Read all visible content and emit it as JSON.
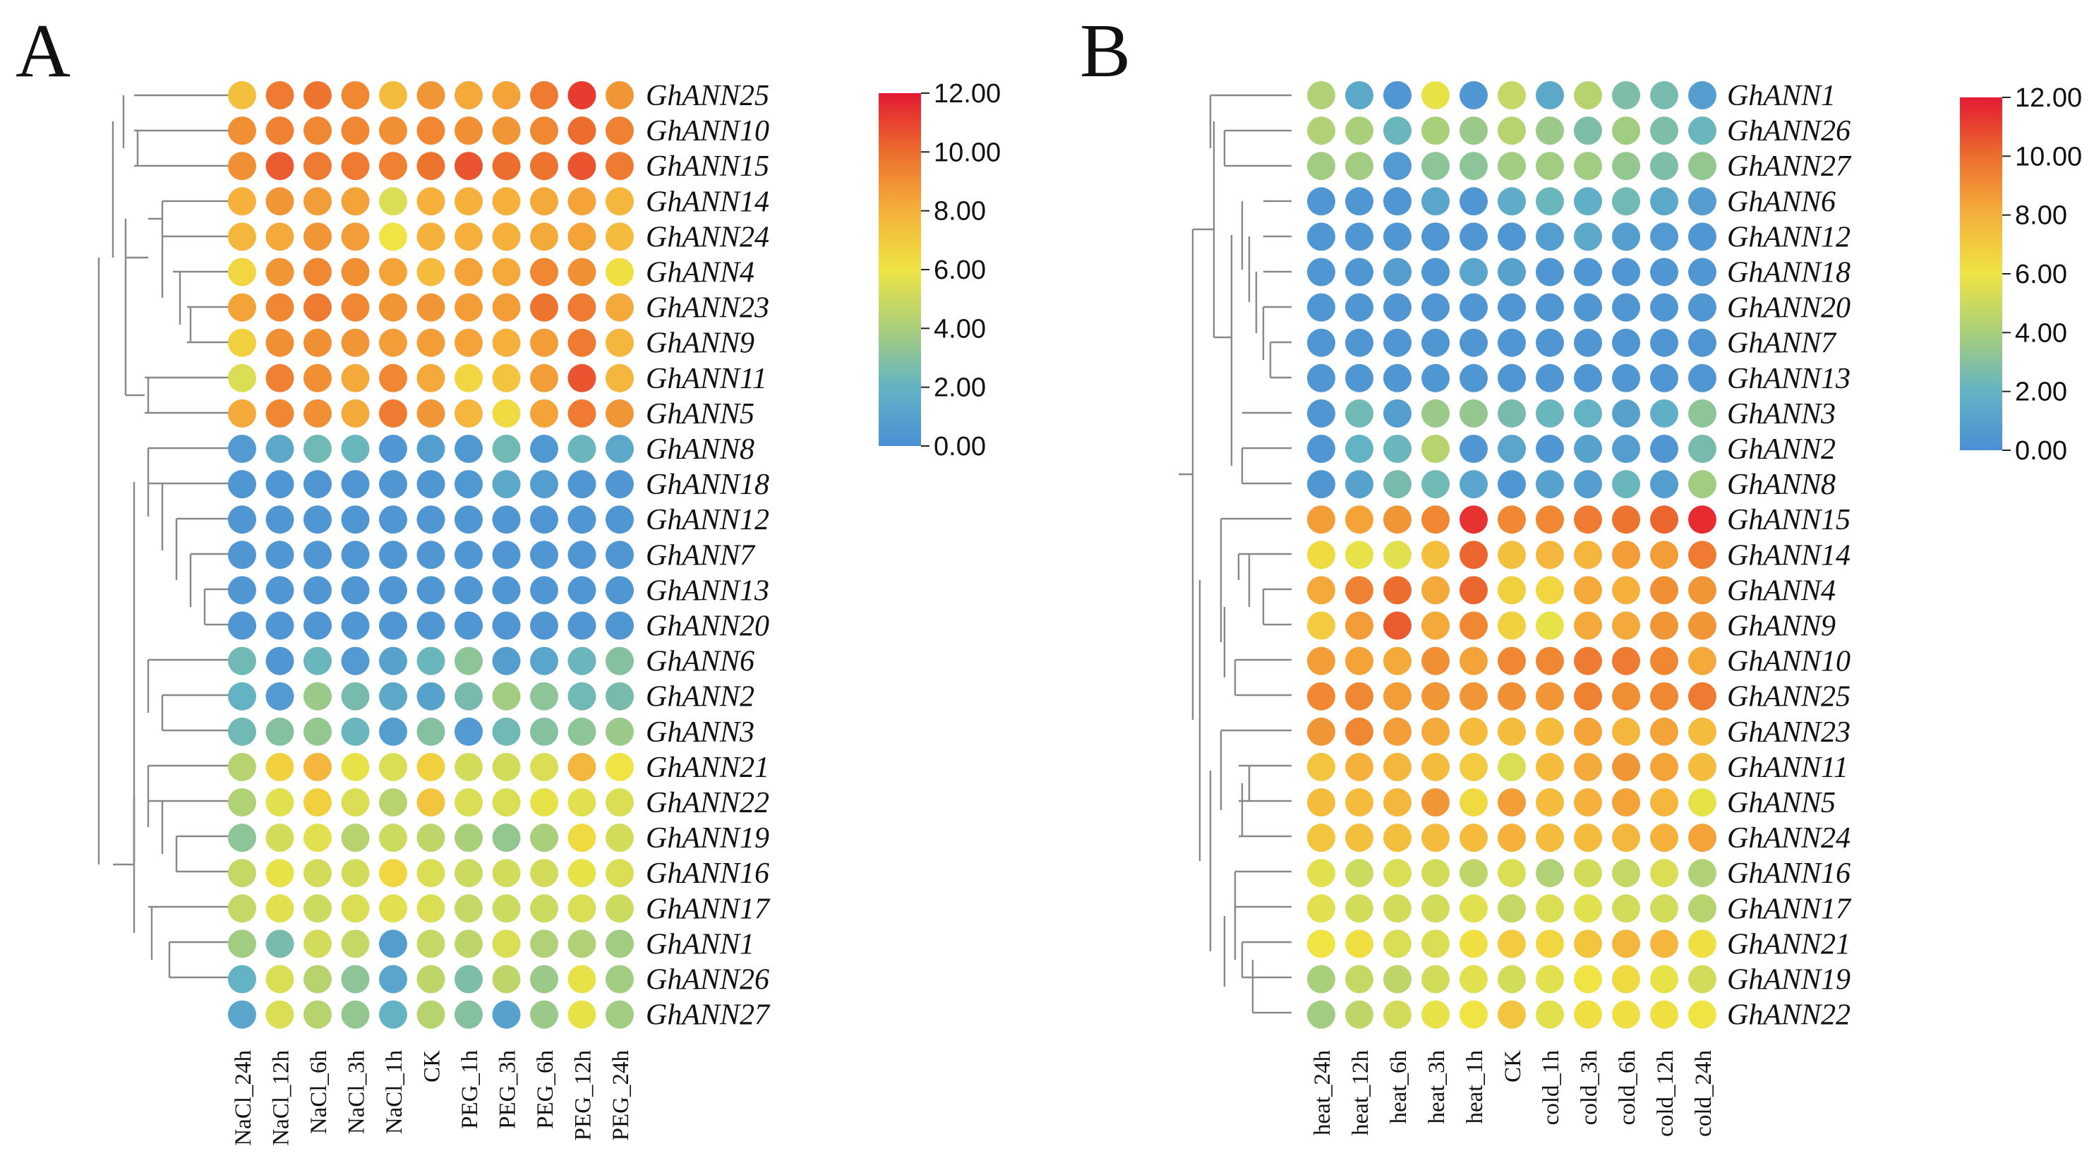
{
  "colors": {
    "scale": [
      "#4a8fd6",
      "#63b3c4",
      "#a9cf7a",
      "#efe444",
      "#f5b13b",
      "#ec6d2e",
      "#e41a32"
    ]
  },
  "chart_data": [
    {
      "type": "heatmap",
      "panel_label": "A",
      "columns": [
        "NaCl_24h",
        "NaCl_12h",
        "NaCl_6h",
        "NaCl_3h",
        "NaCl_1h",
        "CK",
        "PEG_1h",
        "PEG_3h",
        "PEG_6h",
        "PEG_12h",
        "PEG_24h"
      ],
      "rows": [
        "GhANN25",
        "GhANN10",
        "GhANN15",
        "GhANN14",
        "GhANN24",
        "GhANN4",
        "GhANN23",
        "GhANN9",
        "GhANN11",
        "GhANN5",
        "GhANN8",
        "GhANN18",
        "GhANN12",
        "GhANN7",
        "GhANN13",
        "GhANN20",
        "GhANN6",
        "GhANN2",
        "GhANN3",
        "GhANN21",
        "GhANN22",
        "GhANN19",
        "GhANN16",
        "GhANN17",
        "GhANN1",
        "GhANN26",
        "GhANN27"
      ],
      "values": [
        [
          7.4,
          9.6,
          9.8,
          9.2,
          7.6,
          8.8,
          8.2,
          8.4,
          9.6,
          11.2,
          8.8
        ],
        [
          9.0,
          9.4,
          9.2,
          9.2,
          9.0,
          9.2,
          9.0,
          8.8,
          9.2,
          10.0,
          9.4
        ],
        [
          9.0,
          10.4,
          9.6,
          9.6,
          9.4,
          9.8,
          10.6,
          10.0,
          9.8,
          10.6,
          9.6
        ],
        [
          8.0,
          8.8,
          8.6,
          8.4,
          5.4,
          8.0,
          8.0,
          8.0,
          8.2,
          8.4,
          7.8
        ],
        [
          7.8,
          8.2,
          8.8,
          8.6,
          6.0,
          8.0,
          8.0,
          8.0,
          8.2,
          8.4,
          7.6
        ],
        [
          6.6,
          8.8,
          9.2,
          9.0,
          8.4,
          7.6,
          8.4,
          8.2,
          9.2,
          9.0,
          6.2
        ],
        [
          8.4,
          9.2,
          9.6,
          9.2,
          8.8,
          8.8,
          8.6,
          8.6,
          9.8,
          9.6,
          8.2
        ],
        [
          6.8,
          9.0,
          9.0,
          8.8,
          8.6,
          8.6,
          8.4,
          8.0,
          8.6,
          9.6,
          7.8
        ],
        [
          5.4,
          9.4,
          9.0,
          8.2,
          9.2,
          8.2,
          6.6,
          7.2,
          8.6,
          10.6,
          7.8
        ],
        [
          8.2,
          9.2,
          9.0,
          8.2,
          9.6,
          8.8,
          7.8,
          6.4,
          8.4,
          9.6,
          8.8
        ],
        [
          0.6,
          1.4,
          2.4,
          2.2,
          0.4,
          0.8,
          0.5,
          2.4,
          0.5,
          2.2,
          1.4
        ],
        [
          0.4,
          0.4,
          0.4,
          0.4,
          0.4,
          0.4,
          0.5,
          1.4,
          0.8,
          0.4,
          0.4
        ],
        [
          0.4,
          0.4,
          0.4,
          0.4,
          0.4,
          0.4,
          0.4,
          0.4,
          0.4,
          0.4,
          0.4
        ],
        [
          0.4,
          0.4,
          0.4,
          0.4,
          0.4,
          0.4,
          0.4,
          0.4,
          0.4,
          0.4,
          0.4
        ],
        [
          0.4,
          0.4,
          0.4,
          0.4,
          0.4,
          0.4,
          0.4,
          0.4,
          0.4,
          0.4,
          0.4
        ],
        [
          0.4,
          0.4,
          0.4,
          0.4,
          0.4,
          0.4,
          0.4,
          0.4,
          0.4,
          0.4,
          0.4
        ],
        [
          2.4,
          0.4,
          2.2,
          0.6,
          1.0,
          2.2,
          3.2,
          0.8,
          1.2,
          2.2,
          3.0
        ],
        [
          2.0,
          0.6,
          3.6,
          2.6,
          1.4,
          1.0,
          2.6,
          3.8,
          3.2,
          2.4,
          2.6
        ],
        [
          2.4,
          3.0,
          3.4,
          2.2,
          0.8,
          3.0,
          0.6,
          2.4,
          3.0,
          3.2,
          3.6
        ],
        [
          4.4,
          6.8,
          7.8,
          5.8,
          5.4,
          6.8,
          5.2,
          5.2,
          5.4,
          7.8,
          6.0
        ],
        [
          4.2,
          5.6,
          6.8,
          5.4,
          4.4,
          7.2,
          5.4,
          5.4,
          5.8,
          5.6,
          5.4
        ],
        [
          3.2,
          5.2,
          5.6,
          4.4,
          5.0,
          4.6,
          4.0,
          3.4,
          4.0,
          6.4,
          5.2
        ],
        [
          4.8,
          5.8,
          5.2,
          5.2,
          6.6,
          5.4,
          5.0,
          5.2,
          5.2,
          5.8,
          5.4
        ],
        [
          4.8,
          5.6,
          5.0,
          5.4,
          5.6,
          5.4,
          4.8,
          5.0,
          5.0,
          5.4,
          5.0
        ],
        [
          3.8,
          2.6,
          5.2,
          4.8,
          0.8,
          4.8,
          4.6,
          5.4,
          4.2,
          4.2,
          3.8
        ],
        [
          2.0,
          5.4,
          4.4,
          3.2,
          1.2,
          4.6,
          2.8,
          4.6,
          3.6,
          5.8,
          3.8
        ],
        [
          1.2,
          5.4,
          4.4,
          3.4,
          2.0,
          4.4,
          3.0,
          1.0,
          3.6,
          5.8,
          3.8
        ]
      ],
      "colorbar": {
        "min": 0,
        "max": 12,
        "ticks": [
          "12.00",
          "10.00",
          "8.00",
          "6.00",
          "4.00",
          "2.00",
          "0.00"
        ]
      }
    },
    {
      "type": "heatmap",
      "panel_label": "B",
      "columns": [
        "heat_24h",
        "heat_12h",
        "heat_6h",
        "heat_3h",
        "heat_1h",
        "CK",
        "cold_1h",
        "cold_3h",
        "cold_6h",
        "cold_12h",
        "cold_24h"
      ],
      "rows": [
        "GhANN1",
        "GhANN26",
        "GhANN27",
        "GhANN6",
        "GhANN12",
        "GhANN18",
        "GhANN20",
        "GhANN7",
        "GhANN13",
        "GhANN3",
        "GhANN2",
        "GhANN8",
        "GhANN15",
        "GhANN14",
        "GhANN4",
        "GhANN9",
        "GhANN10",
        "GhANN25",
        "GhANN23",
        "GhANN11",
        "GhANN5",
        "GhANN24",
        "GhANN16",
        "GhANN17",
        "GhANN21",
        "GhANN19",
        "GhANN22"
      ],
      "values": [
        [
          4.2,
          1.4,
          0.4,
          5.8,
          0.4,
          4.8,
          1.4,
          4.4,
          2.8,
          2.6,
          0.8
        ],
        [
          4.2,
          4.0,
          2.2,
          4.0,
          3.6,
          4.4,
          3.6,
          2.8,
          3.8,
          2.8,
          2.2
        ],
        [
          3.8,
          3.8,
          0.6,
          3.2,
          3.2,
          3.8,
          3.8,
          3.8,
          3.4,
          2.8,
          3.4
        ],
        [
          0.4,
          0.4,
          0.4,
          1.2,
          0.4,
          1.6,
          2.2,
          1.8,
          2.4,
          1.4,
          0.8
        ],
        [
          0.4,
          0.4,
          0.4,
          0.4,
          0.4,
          0.4,
          0.8,
          1.4,
          0.8,
          0.6,
          0.4
        ],
        [
          0.4,
          0.4,
          0.8,
          0.4,
          1.2,
          1.0,
          0.4,
          0.4,
          0.4,
          0.4,
          0.4
        ],
        [
          0.4,
          0.4,
          0.4,
          0.4,
          0.4,
          0.4,
          0.4,
          0.4,
          0.4,
          0.4,
          0.4
        ],
        [
          0.4,
          0.4,
          0.4,
          0.4,
          0.4,
          0.4,
          0.4,
          0.4,
          0.4,
          0.4,
          0.4
        ],
        [
          0.4,
          0.4,
          0.4,
          0.4,
          0.4,
          0.4,
          0.4,
          0.4,
          0.4,
          0.4,
          0.4
        ],
        [
          0.4,
          2.4,
          0.8,
          3.6,
          3.4,
          2.6,
          2.2,
          2.0,
          1.0,
          1.8,
          3.2
        ],
        [
          0.4,
          2.0,
          2.2,
          4.4,
          0.4,
          1.2,
          0.4,
          1.0,
          0.8,
          0.4,
          2.6
        ],
        [
          0.4,
          1.0,
          2.6,
          2.4,
          1.2,
          0.4,
          1.0,
          0.8,
          2.2,
          0.8,
          3.8
        ],
        [
          8.6,
          8.4,
          8.8,
          9.2,
          11.4,
          9.2,
          9.2,
          9.6,
          9.8,
          10.2,
          11.6
        ],
        [
          6.4,
          5.8,
          5.6,
          7.4,
          10.2,
          7.4,
          7.8,
          7.8,
          8.6,
          8.6,
          9.6
        ],
        [
          8.2,
          9.4,
          10.0,
          8.2,
          10.2,
          6.8,
          6.6,
          8.2,
          8.0,
          9.0,
          8.8
        ],
        [
          7.0,
          8.6,
          10.4,
          8.2,
          9.2,
          6.8,
          5.8,
          8.2,
          8.2,
          8.8,
          8.8
        ],
        [
          8.6,
          8.4,
          8.2,
          9.0,
          8.4,
          9.2,
          9.2,
          9.6,
          9.6,
          9.2,
          8.2
        ],
        [
          9.2,
          9.2,
          8.6,
          8.8,
          8.8,
          9.0,
          8.8,
          9.4,
          9.0,
          9.2,
          9.6
        ],
        [
          8.8,
          9.2,
          8.6,
          8.2,
          7.6,
          7.6,
          7.6,
          8.4,
          7.8,
          8.4,
          7.6
        ],
        [
          7.2,
          8.0,
          7.8,
          7.6,
          7.0,
          5.4,
          7.6,
          8.2,
          8.8,
          8.4,
          7.6
        ],
        [
          7.6,
          7.6,
          7.8,
          8.8,
          6.4,
          8.6,
          7.6,
          8.0,
          8.4,
          7.8,
          5.8
        ],
        [
          7.2,
          7.4,
          7.4,
          7.6,
          7.6,
          8.0,
          7.6,
          7.6,
          7.8,
          8.0,
          8.4
        ],
        [
          5.6,
          5.0,
          5.4,
          5.2,
          4.6,
          5.4,
          4.2,
          5.2,
          4.8,
          5.4,
          4.2
        ],
        [
          5.6,
          5.2,
          5.2,
          5.2,
          5.6,
          4.8,
          5.4,
          5.6,
          5.2,
          5.2,
          4.4
        ],
        [
          6.0,
          6.2,
          5.4,
          5.4,
          6.2,
          7.0,
          6.6,
          7.2,
          7.8,
          7.8,
          6.2
        ],
        [
          4.0,
          4.8,
          4.6,
          5.2,
          5.6,
          5.2,
          5.6,
          6.0,
          6.4,
          5.8,
          5.2
        ],
        [
          3.8,
          4.6,
          5.2,
          5.8,
          6.0,
          7.2,
          5.6,
          6.2,
          6.2,
          6.2,
          6.0
        ]
      ],
      "colorbar": {
        "min": 0,
        "max": 12,
        "ticks": [
          "12.00",
          "10.00",
          "8.00",
          "6.00",
          "4.00",
          "2.00",
          "0.00"
        ]
      }
    }
  ]
}
